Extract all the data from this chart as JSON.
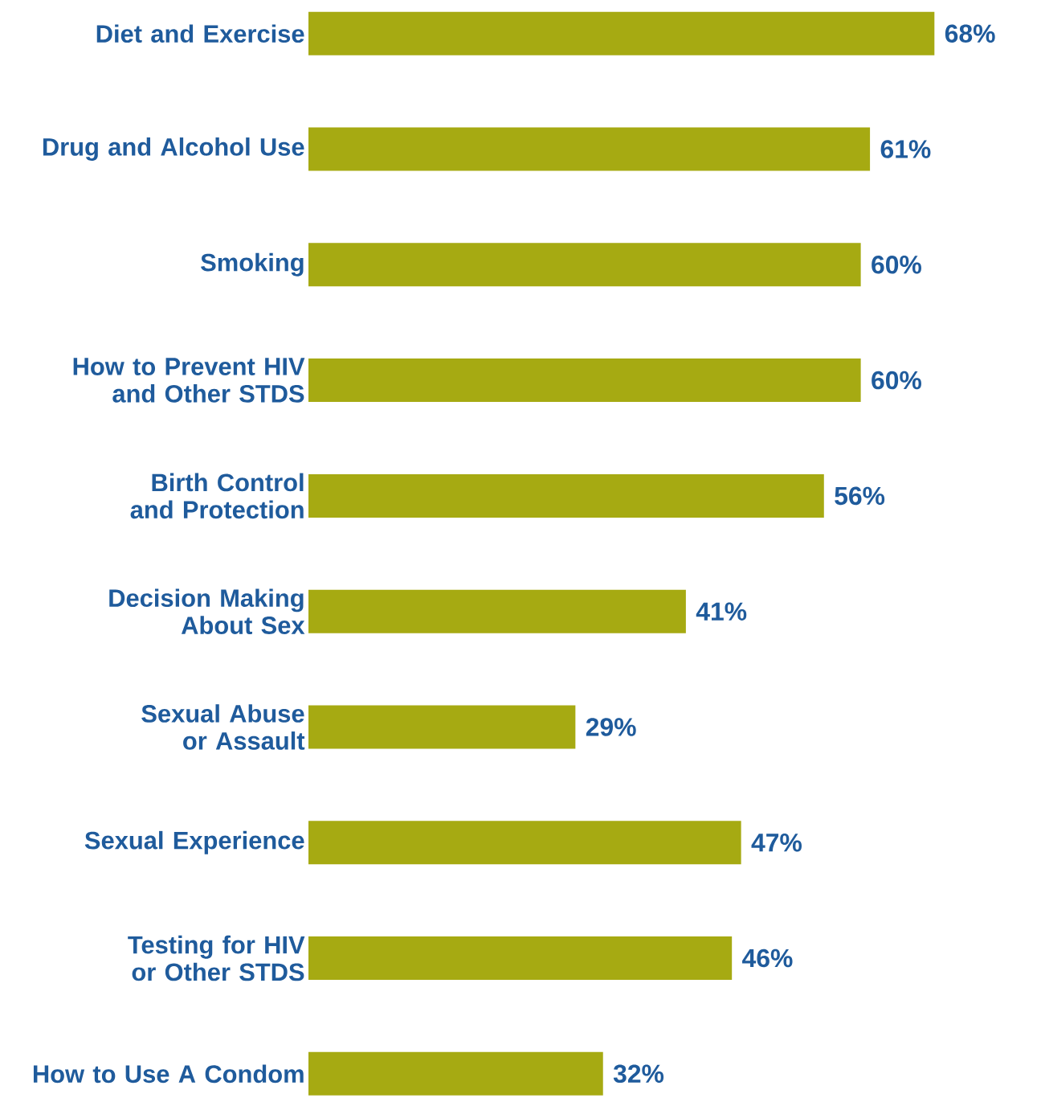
{
  "chart_data": {
    "type": "bar",
    "orientation": "horizontal",
    "color": "#a6aa12",
    "categories": [
      "Diet and Exercise",
      "Drug and Alcohol Use",
      "Smoking",
      "How to Prevent HIV and Other STDS",
      "Birth Control and Protection",
      "Decision Making About Sex",
      "Sexual Abuse or Assault",
      "Sexual Experience",
      "Testing for HIV or Other STDS",
      "How to Use A Condom"
    ],
    "values": [
      68,
      61,
      60,
      60,
      56,
      41,
      29,
      47,
      46,
      32
    ],
    "value_labels": [
      "68%",
      "61%",
      "60%",
      "60%",
      "56%",
      "41%",
      "29%",
      "47%",
      "46%",
      "32%"
    ]
  }
}
